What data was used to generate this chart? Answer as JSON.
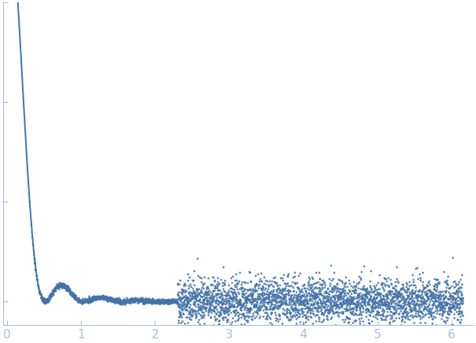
{
  "title": "",
  "xlabel": "",
  "ylabel": "",
  "xlim": [
    -0.05,
    6.3
  ],
  "x_ticks": [
    0,
    1,
    2,
    3,
    4,
    5,
    6
  ],
  "background_color": "#ffffff",
  "dot_color": "#4472a8",
  "line_color": "#4472a8",
  "fig_width": 6.06,
  "fig_height": 4.37,
  "dpi": 100,
  "spine_color": "#a8bfd8",
  "tick_label_color": "#a8bfd8",
  "noise_seed": 42
}
